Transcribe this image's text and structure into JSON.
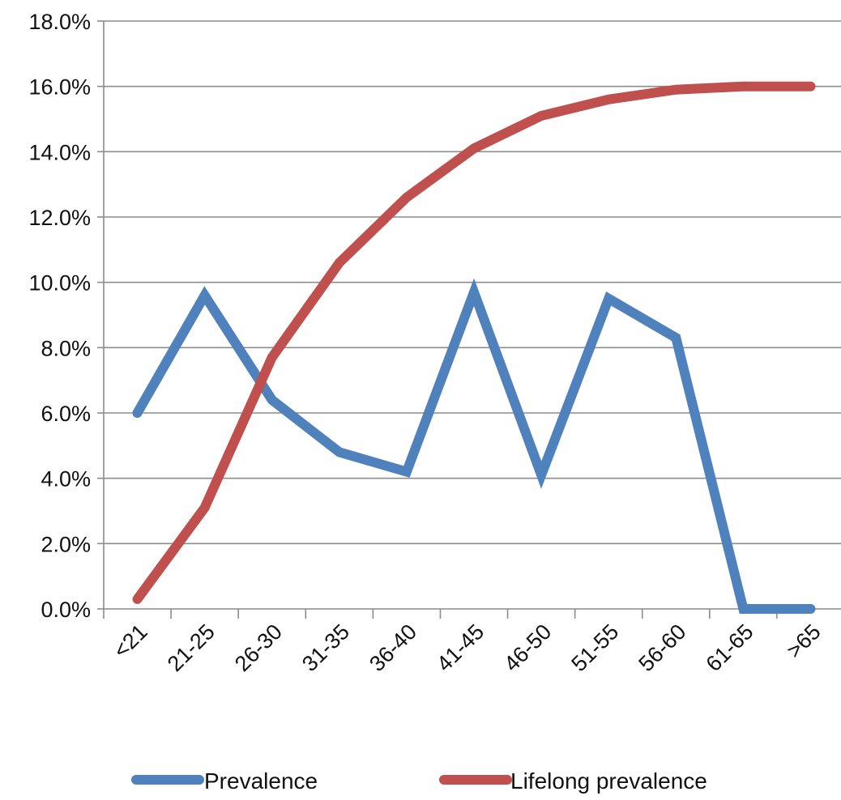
{
  "chart_data": {
    "type": "line",
    "categories": [
      "<21",
      "21-25",
      "26-30",
      "31-35",
      "36-40",
      "41-45",
      "46-50",
      "51-55",
      "56-60",
      "61-65",
      ">65"
    ],
    "series": [
      {
        "name": "Prevalence",
        "color": "#4f81bd",
        "values": [
          6.0,
          9.6,
          6.4,
          4.8,
          4.2,
          9.7,
          4.1,
          9.5,
          8.3,
          0.0,
          0.0
        ]
      },
      {
        "name": "Lifelong prevalence",
        "color": "#c0504d",
        "values": [
          0.3,
          3.1,
          7.7,
          10.6,
          12.6,
          14.1,
          15.1,
          15.6,
          15.9,
          16.0,
          16.0
        ]
      }
    ],
    "ylim": [
      0,
      18
    ],
    "yticks": [
      "0.0%",
      "2.0%",
      "4.0%",
      "6.0%",
      "8.0%",
      "10.0%",
      "12.0%",
      "14.0%",
      "16.0%",
      "18.0%"
    ],
    "grid": true,
    "legend_position": "bottom"
  }
}
